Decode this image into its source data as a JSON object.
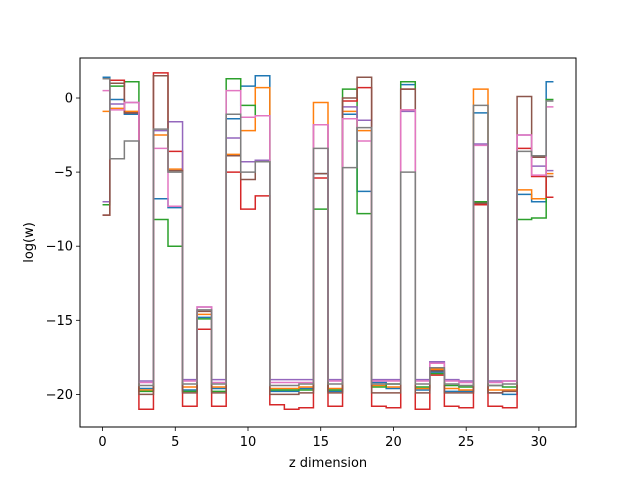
{
  "chart_data": {
    "type": "line",
    "drawstyle": "steps-mid",
    "title": "",
    "xlabel": "z dimension",
    "ylabel": "log(w)",
    "xlim": [
      -1.55,
      32.55
    ],
    "ylim": [
      -22.2,
      2.7
    ],
    "xticks": [
      0,
      5,
      10,
      15,
      20,
      25,
      30
    ],
    "yticks": [
      -20,
      -15,
      -10,
      -5,
      0
    ],
    "grid": false,
    "legend": "none",
    "x": [
      0,
      1,
      2,
      3,
      4,
      5,
      6,
      7,
      8,
      9,
      10,
      11,
      12,
      13,
      14,
      15,
      16,
      17,
      18,
      19,
      20,
      21,
      22,
      23,
      24,
      25,
      26,
      27,
      28,
      29,
      30,
      31
    ],
    "series": [
      {
        "color": "#1f77b4",
        "values": [
          1.4,
          -0.1,
          -1.1,
          -19.6,
          -6.8,
          -7.4,
          -19.7,
          -14.8,
          -19.6,
          -1.4,
          0.8,
          1.5,
          -19.8,
          -19.8,
          -19.6,
          -5.1,
          -19.8,
          -1.1,
          -6.3,
          -19.2,
          -19.6,
          0.9,
          -19.7,
          -18.5,
          -19.8,
          -19.8,
          -1.0,
          -19.9,
          -20.0,
          -6.5,
          -7.0,
          1.1
        ]
      },
      {
        "color": "#ff7f0e",
        "values": [
          -0.9,
          -0.7,
          -0.9,
          -19.7,
          -2.5,
          -4.8,
          -19.5,
          -14.6,
          -19.5,
          -3.8,
          -2.2,
          0.7,
          -19.6,
          -19.6,
          -19.5,
          -0.3,
          -19.6,
          -0.9,
          -2.2,
          -19.4,
          -19.5,
          -0.8,
          -19.6,
          -18.3,
          -19.6,
          -19.7,
          0.6,
          -19.7,
          -19.7,
          -6.2,
          -6.8,
          -5.1
        ]
      },
      {
        "color": "#2ca02c",
        "values": [
          -7.2,
          0.8,
          1.1,
          -19.8,
          -8.2,
          -10.0,
          -19.8,
          -14.9,
          -19.8,
          1.3,
          -0.5,
          -1.2,
          -19.7,
          -19.7,
          -19.7,
          -7.5,
          -19.7,
          0.6,
          -7.8,
          -19.5,
          -19.3,
          1.1,
          -19.5,
          -18.6,
          -19.4,
          -19.5,
          -7.0,
          -19.4,
          -19.5,
          -8.2,
          -8.1,
          -0.1
        ]
      },
      {
        "color": "#d62728",
        "values": [
          -7.9,
          1.2,
          -1.0,
          -21.0,
          1.7,
          -3.6,
          -20.8,
          -15.6,
          -20.8,
          -5.0,
          -7.5,
          -6.6,
          -20.7,
          -21.0,
          -20.9,
          -5.4,
          -20.8,
          -0.2,
          0.7,
          -20.8,
          -20.9,
          0.6,
          -21.0,
          -18.7,
          -20.8,
          -20.9,
          -7.2,
          -20.8,
          -20.9,
          -3.4,
          -5.3,
          -6.7
        ]
      },
      {
        "color": "#9467bd",
        "values": [
          -7.0,
          -0.4,
          -0.3,
          -19.1,
          -2.2,
          -1.6,
          -19.0,
          -14.1,
          -19.0,
          -2.7,
          -4.3,
          -4.2,
          -19.0,
          -19.0,
          -19.0,
          -1.8,
          -19.0,
          -0.6,
          -1.5,
          -19.0,
          -19.0,
          -0.9,
          -19.0,
          -17.8,
          -19.0,
          -19.1,
          -3.1,
          -19.1,
          -19.1,
          -2.5,
          -4.6,
          -4.9
        ]
      },
      {
        "color": "#8c564b",
        "values": [
          -7.9,
          1.0,
          -1.0,
          -20.0,
          1.5,
          -4.9,
          -19.9,
          -14.4,
          -19.9,
          -3.9,
          -5.5,
          -4.3,
          -20.0,
          -20.0,
          -19.9,
          -5.1,
          -19.9,
          0.0,
          1.4,
          -19.9,
          -19.9,
          0.6,
          -19.9,
          -18.4,
          -19.9,
          -19.9,
          -7.1,
          -19.9,
          -19.8,
          0.1,
          -4.0,
          -5.3
        ]
      },
      {
        "color": "#e377c2",
        "values": [
          0.5,
          -0.8,
          -0.3,
          -19.2,
          -3.4,
          -7.3,
          -19.1,
          -14.1,
          -19.2,
          0.5,
          -1.3,
          -1.2,
          -19.2,
          -19.2,
          -19.2,
          -1.8,
          -19.1,
          -1.4,
          -2.9,
          -19.1,
          -19.1,
          -0.8,
          -19.1,
          -17.9,
          -19.1,
          -19.2,
          -3.2,
          -19.2,
          -19.1,
          -2.5,
          -5.2,
          -0.6
        ]
      },
      {
        "color": "#7f7f7f",
        "values": [
          1.3,
          -4.1,
          -2.9,
          -19.4,
          -2.1,
          -5.0,
          -19.3,
          -14.3,
          -19.3,
          -1.1,
          -5.0,
          -4.3,
          -19.4,
          -19.4,
          -19.3,
          -3.4,
          -19.3,
          -4.7,
          -2.0,
          -19.3,
          -19.3,
          -5.0,
          -19.3,
          -18.2,
          -19.3,
          -19.4,
          -0.5,
          -19.4,
          -19.3,
          -3.6,
          -3.9,
          -0.2
        ]
      }
    ]
  }
}
